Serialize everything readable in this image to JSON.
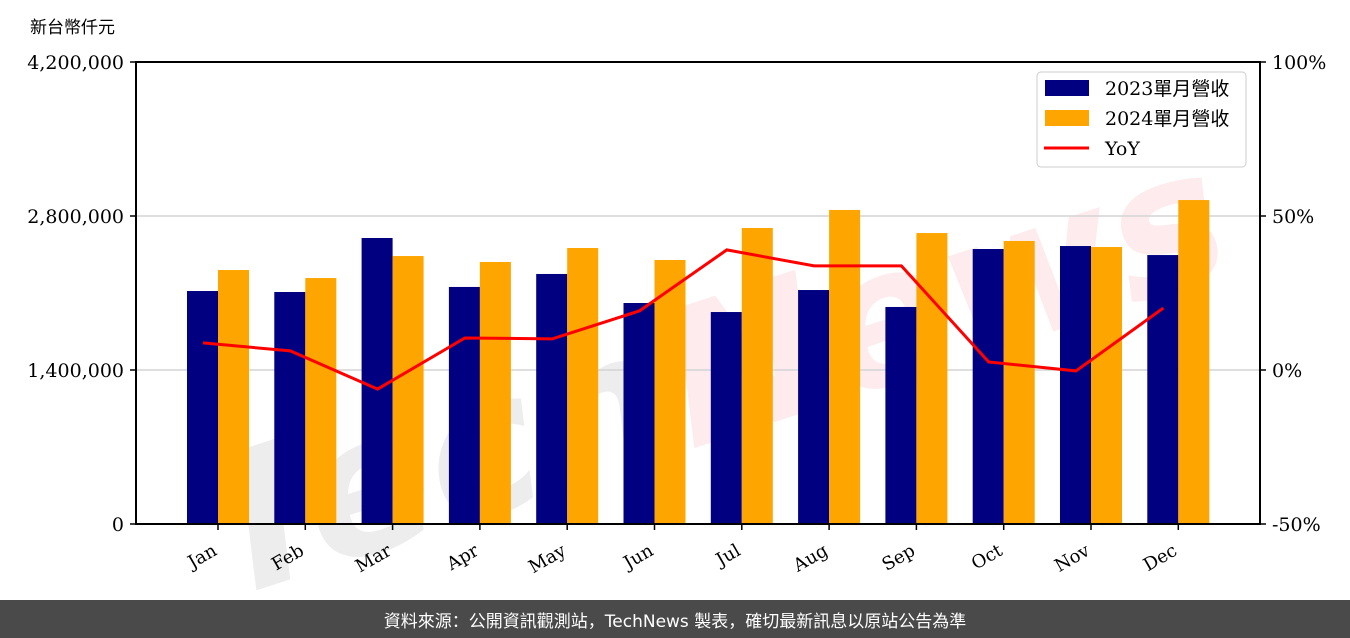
{
  "chart_data": {
    "type": "bar",
    "title": "",
    "ylabel": "新台幣仟元",
    "ylabel_right": "",
    "xlabel": "",
    "categories": [
      "Jan",
      "Feb",
      "Mar",
      "Apr",
      "May",
      "Jun",
      "Jul",
      "Aug",
      "Sep",
      "Oct",
      "Nov",
      "Dec"
    ],
    "series": [
      {
        "name": "2023單月營收",
        "type": "bar",
        "color": "#000080",
        "axis": "left",
        "values": [
          2118000,
          2109000,
          2600000,
          2155000,
          2273000,
          2009000,
          1927000,
          2127000,
          1973000,
          2500000,
          2527000,
          2445000
        ]
      },
      {
        "name": "2024單月營收",
        "type": "bar",
        "color": "#FFA500",
        "axis": "left",
        "values": [
          2309000,
          2236000,
          2436000,
          2382000,
          2509000,
          2400000,
          2691000,
          2855000,
          2645000,
          2573000,
          2518000,
          2945000
        ]
      },
      {
        "name": "YoY",
        "type": "line",
        "color": "#FF0000",
        "axis": "right",
        "values": [
          8.8,
          6.2,
          -6.2,
          10.4,
          10.1,
          19.2,
          39.0,
          33.8,
          33.8,
          2.6,
          -0.3,
          20.1
        ]
      }
    ],
    "ylim": [
      0,
      4200000
    ],
    "yticks": [
      "0",
      "1,400,000",
      "2,800,000",
      "4,200,000"
    ],
    "ylim_right": [
      -50,
      100
    ],
    "yticks_right": [
      "-50%",
      "0%",
      "50%",
      "100%"
    ],
    "grid": true,
    "legend_position": "upper right",
    "watermark": "TechNews"
  },
  "footer": {
    "text": "資料來源：公開資訊觀測站，TechNews 製表，確切最新訊息以原站公告為準"
  }
}
